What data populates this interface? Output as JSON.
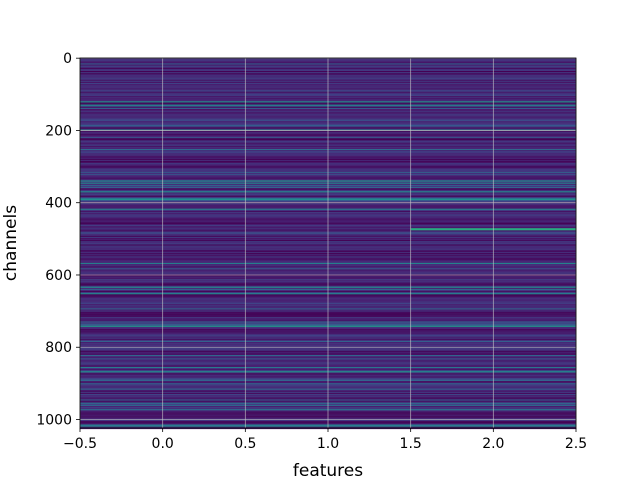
{
  "chart_data": {
    "type": "heatmap",
    "title": "",
    "xlabel": "features",
    "ylabel": "channels",
    "xlim": [
      -0.5,
      2.5
    ],
    "ylim": [
      1023.5,
      -0.5
    ],
    "rows": 1024,
    "cols": 3,
    "y_inverted": true,
    "grid": true,
    "colormap": "viridis",
    "x_ticks": [
      {
        "value": -0.5,
        "label": "−0.5"
      },
      {
        "value": 0.0,
        "label": "0.0"
      },
      {
        "value": 0.5,
        "label": "0.5"
      },
      {
        "value": 1.0,
        "label": "1.0"
      },
      {
        "value": 1.5,
        "label": "1.5"
      },
      {
        "value": 2.0,
        "label": "2.0"
      },
      {
        "value": 2.5,
        "label": "2.5"
      }
    ],
    "y_ticks": [
      {
        "value": 0,
        "label": "0"
      },
      {
        "value": 200,
        "label": "200"
      },
      {
        "value": 400,
        "label": "400"
      },
      {
        "value": 600,
        "label": "600"
      },
      {
        "value": 800,
        "label": "800"
      },
      {
        "value": 1000,
        "label": "1000"
      }
    ]
  },
  "colors": {
    "grid": "#c8c8c8",
    "frame": "#000000",
    "viridis_low": "#440154",
    "viridis_mid": "#21918c",
    "viridis_high": "#fde725"
  }
}
